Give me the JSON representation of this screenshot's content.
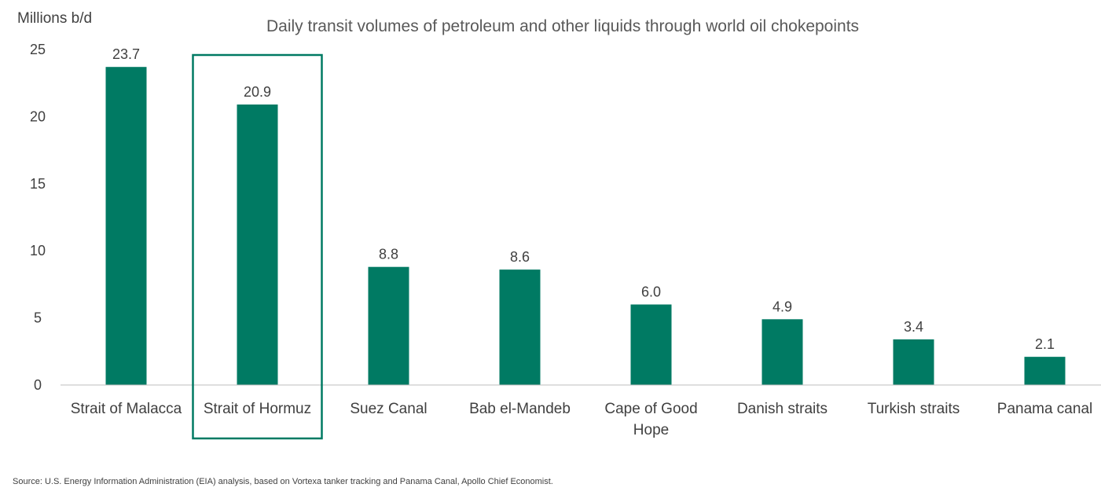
{
  "chart_data": {
    "type": "bar",
    "title": "Daily transit volumes of petroleum and other liquids through world oil chokepoints",
    "ylabel": "Millions b/d",
    "xlabel": "",
    "ylim": [
      0,
      25
    ],
    "yticks": [
      0,
      5,
      10,
      15,
      20,
      25
    ],
    "categories": [
      [
        "Strait of Malacca"
      ],
      [
        "Strait of Hormuz"
      ],
      [
        "Suez Canal"
      ],
      [
        "Bab el-Mandeb"
      ],
      [
        "Cape of Good",
        "Hope"
      ],
      [
        "Danish straits"
      ],
      [
        "Turkish straits"
      ],
      [
        "Panama canal"
      ]
    ],
    "values": [
      23.7,
      20.9,
      8.8,
      8.6,
      6.0,
      4.9,
      3.4,
      2.1
    ],
    "data_labels": [
      "23.7",
      "20.9",
      "8.8",
      "8.6",
      "6.0",
      "4.9",
      "3.4",
      "2.1"
    ],
    "highlighted_category": "Strait of Hormuz",
    "grid": false,
    "legend": "none",
    "colors": {
      "bar": "#007A63",
      "highlight_box": "#007A63",
      "axis": "#BFBFBF"
    }
  },
  "source": "Source: U.S. Energy Information Administration (EIA) analysis, based on Vortexa tanker tracking and Panama Canal, Apollo Chief Economist."
}
